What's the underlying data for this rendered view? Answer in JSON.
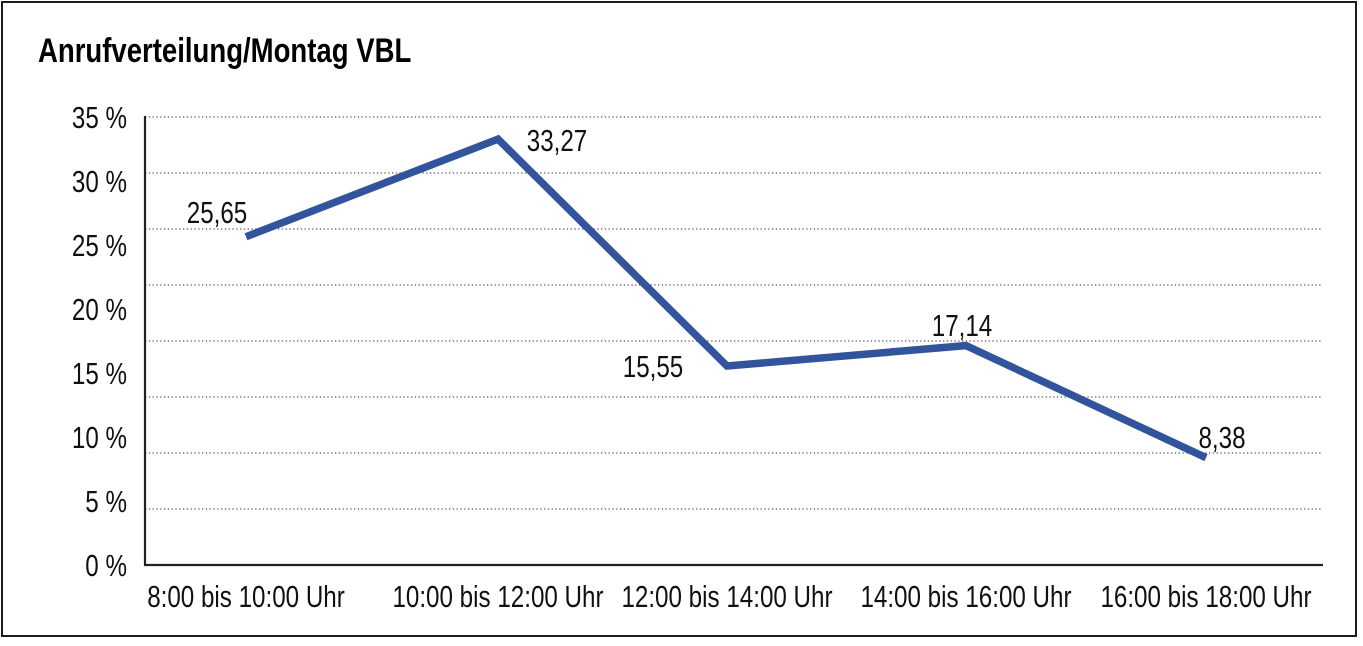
{
  "panel": {
    "title": "Anrufverteilung/Montag VBL"
  },
  "chart_data": {
    "type": "line",
    "title": "Anrufverteilung/Montag VBL",
    "categories": [
      "8:00 bis 10:00 Uhr",
      "10:00 bis 12:00 Uhr",
      "12:00 bis 14:00 Uhr",
      "14:00 bis 16:00 Uhr",
      "16:00 bis 18:00 Uhr"
    ],
    "values": [
      25.65,
      33.27,
      15.55,
      17.14,
      8.38
    ],
    "value_labels": [
      "25,65",
      "33,27",
      "15,55",
      "17,14",
      "8,38"
    ],
    "y_tick_labels": [
      "35 %",
      "30 %",
      "25 %",
      "20 %",
      "15 %",
      "10 %",
      "5 %",
      "0 %"
    ],
    "ylim": [
      0,
      35
    ],
    "y_tick_step": 5,
    "xlabel": "",
    "ylabel": "",
    "legend": "none",
    "grid": {
      "horizontal": "dotted",
      "bands": 8,
      "vertical": "none"
    },
    "line_color": "#31549D",
    "text_color": "#111111",
    "background_color": "#ffffff",
    "frame_color": "#1c1c1c"
  }
}
